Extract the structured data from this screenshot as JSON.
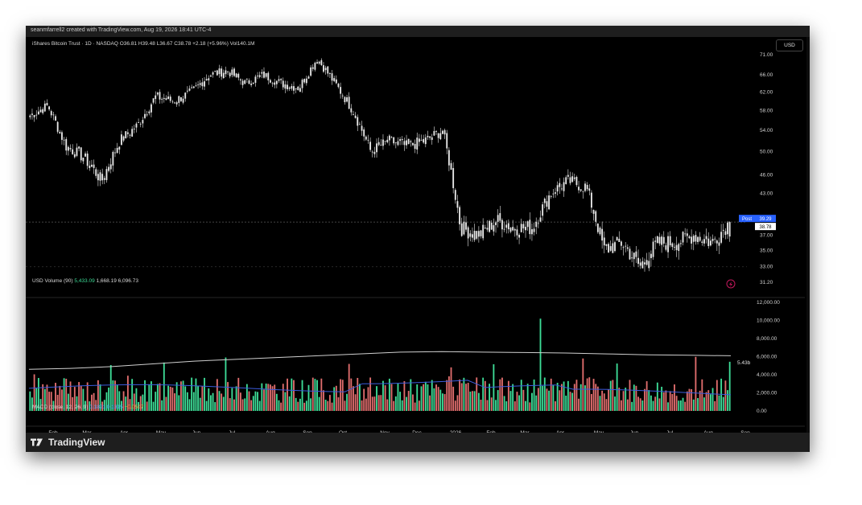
{
  "created_text": "seanmfarrell2 created with TradingView.com, Aug 19, 2026 18:41 UTC-4",
  "symbol_line": "iShares Bitcoin Trust · 1D · NASDAQ  O36.81  H39.48  L36.67  C38.78  +2.18 (+5.96%)  Vol140.1M",
  "currency": "USD",
  "post_label": "Post",
  "post_value": "39.29",
  "last_value": "38.78",
  "volume_legend": {
    "title": "USD Volume (90)",
    "v1": "5,433.09",
    "v2": "1,668.19",
    "v3": "6,096.73"
  },
  "volume_last_label": "5.43b",
  "macd_legend": {
    "title": "MACD (close, 12, 26, 9)",
    "v1": "0.1821",
    "v2": "0.1315",
    "v3": "−0.0507"
  },
  "brand": "TradingView",
  "colors": {
    "up": "#3ddc97",
    "down": "#e06d6d",
    "price_candle": "#e8e8e8",
    "ma_line": "#cfcfcf",
    "vol_ma_line": "#3b5bdb",
    "post_badge": "#2962ff"
  },
  "chart_data": [
    {
      "type": "candlestick",
      "title": "iShares Bitcoin Trust · 1D · NASDAQ",
      "price_axis_ticks": [
        "71.00",
        "66.00",
        "62.00",
        "58.00",
        "54.00",
        "50.00",
        "46.00",
        "43.00",
        "39.29",
        "37.00",
        "35.00",
        "33.00",
        "31.20"
      ],
      "ylim": [
        31.2,
        71.0
      ],
      "time_axis_labels": [
        "Feb",
        "Mar",
        "Apr",
        "May",
        "Jun",
        "Jul",
        "Aug",
        "Sep",
        "Oct",
        "Nov",
        "Dec",
        "2026",
        "Feb",
        "Mar",
        "Apr",
        "May",
        "Jun",
        "Jul",
        "Aug",
        "Sep"
      ],
      "close_path": [
        {
          "t": "Jan",
          "c": 57
        },
        {
          "t": "Feb",
          "c": 59
        },
        {
          "t": "Mar",
          "c": 51
        },
        {
          "t": "Mar2",
          "c": 49
        },
        {
          "t": "Apr",
          "c": 45
        },
        {
          "t": "Apr2",
          "c": 52
        },
        {
          "t": "May",
          "c": 55
        },
        {
          "t": "May2",
          "c": 61
        },
        {
          "t": "Jun",
          "c": 60
        },
        {
          "t": "Jun2",
          "c": 62
        },
        {
          "t": "Jul",
          "c": 66
        },
        {
          "t": "Jul2",
          "c": 67
        },
        {
          "t": "Aug",
          "c": 64
        },
        {
          "t": "Aug2",
          "c": 66
        },
        {
          "t": "Sep",
          "c": 64
        },
        {
          "t": "Sep2",
          "c": 63
        },
        {
          "t": "Oct",
          "c": 70
        },
        {
          "t": "Oct2",
          "c": 64
        },
        {
          "t": "Nov",
          "c": 58
        },
        {
          "t": "Nov2",
          "c": 50
        },
        {
          "t": "Dec",
          "c": 52
        },
        {
          "t": "Dec2",
          "c": 51
        },
        {
          "t": "2026",
          "c": 52
        },
        {
          "t": "Jan2",
          "c": 54
        },
        {
          "t": "Feb",
          "c": 38
        },
        {
          "t": "Feb2",
          "c": 37
        },
        {
          "t": "Mar",
          "c": 39
        },
        {
          "t": "Mar2",
          "c": 38
        },
        {
          "t": "Apr",
          "c": 38
        },
        {
          "t": "Apr2",
          "c": 43
        },
        {
          "t": "May",
          "c": 45
        },
        {
          "t": "May2",
          "c": 44
        },
        {
          "t": "Jun",
          "c": 35
        },
        {
          "t": "Jun2",
          "c": 36
        },
        {
          "t": "Jul",
          "c": 33
        },
        {
          "t": "Jul2",
          "c": 36
        },
        {
          "t": "Aug",
          "c": 36
        },
        {
          "t": "Aug2",
          "c": 37
        },
        {
          "t": "Aug3",
          "c": 36
        },
        {
          "t": "Aug19",
          "c": 38.78
        }
      ]
    },
    {
      "type": "bar",
      "title": "USD Volume (90)",
      "ylim": [
        0,
        12000
      ],
      "axis_ticks": [
        "12,000.00",
        "10,000.00",
        "8,000.00",
        "6,000.00",
        "4,000.00",
        "2,000.00",
        "0.00"
      ],
      "ma_series": [
        {
          "name": "",
          "values": [
            4600,
            4700,
            4900,
            5200,
            5500,
            5700,
            5900,
            6100,
            6300,
            6500,
            6550,
            6500,
            6450,
            6400,
            6300,
            6200,
            6150,
            6100
          ]
        }
      ],
      "last_value": 5433.09
    },
    {
      "type": "line",
      "title": "MACD (close, 12, 26, 9)",
      "values": {
        "macd": 0.1821,
        "signal": 0.1315,
        "histogram": -0.0507
      }
    }
  ]
}
